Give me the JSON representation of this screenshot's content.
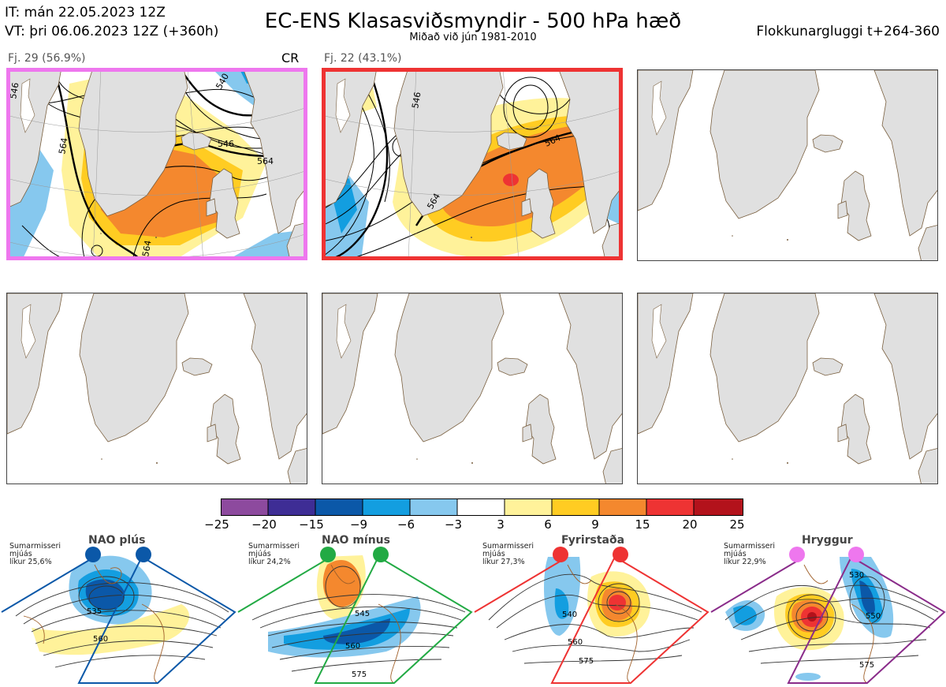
{
  "header": {
    "it_line": "IT: mán 22.05.2023 12Z",
    "vt_line": "VT: þri 06.06.2023 12Z  (+360h)",
    "title": "EC-ENS Klasasviðsmyndir - 500 hPa hæð",
    "subtitle": "Miðað við jún 1981-2010",
    "window": "Flokkunargluggi t+264-360"
  },
  "clusters": [
    {
      "label": "Fj. 29 (56.9%)",
      "regime_code": "CR",
      "frame_color": "#ee77ee",
      "contour_labels": [
        "546",
        "564",
        "540",
        "564",
        "546",
        "564"
      ]
    },
    {
      "label": "Fj. 22 (43.1%)",
      "frame_color": "#ee3333",
      "contour_labels": [
        "546",
        "564",
        "564"
      ]
    }
  ],
  "colorbar": {
    "ticks": [
      "−25",
      "−20",
      "−15",
      "−9",
      "−6",
      "−3",
      "3",
      "6",
      "9",
      "15",
      "20",
      "25"
    ],
    "colors": [
      "#8d4a9e",
      "#3e2d95",
      "#0b58a8",
      "#139ee0",
      "#86c8ee",
      "#ffffff",
      "#fff29a",
      "#ffcc22",
      "#f4882e",
      "#ee3333",
      "#b3121b"
    ]
  },
  "regimes": [
    {
      "name": "NAO plús",
      "season": "Sumarmisseri",
      "smooth": "mjúás",
      "prob": "líkur 25,6%",
      "color": "#0b58a8",
      "contour_labels": [
        "535",
        "560"
      ]
    },
    {
      "name": "NAO mínus",
      "season": "Sumarmisseri",
      "smooth": "mjúás",
      "prob": "líkur 24,2%",
      "color": "#22aa44",
      "contour_labels": [
        "545",
        "560",
        "575"
      ]
    },
    {
      "name": "Fyrirstaða",
      "season": "Sumarmisseri",
      "smooth": "mjúás",
      "prob": "líkur 27,3%",
      "color": "#ee3333",
      "contour_labels": [
        "540",
        "560",
        "575"
      ]
    },
    {
      "name": "Hryggur",
      "season": "Sumarmisseri",
      "smooth": "mjúás",
      "prob": "líkur 22,9%",
      "color": "#ee77ee",
      "contour_labels": [
        "530",
        "550",
        "575"
      ]
    }
  ]
}
